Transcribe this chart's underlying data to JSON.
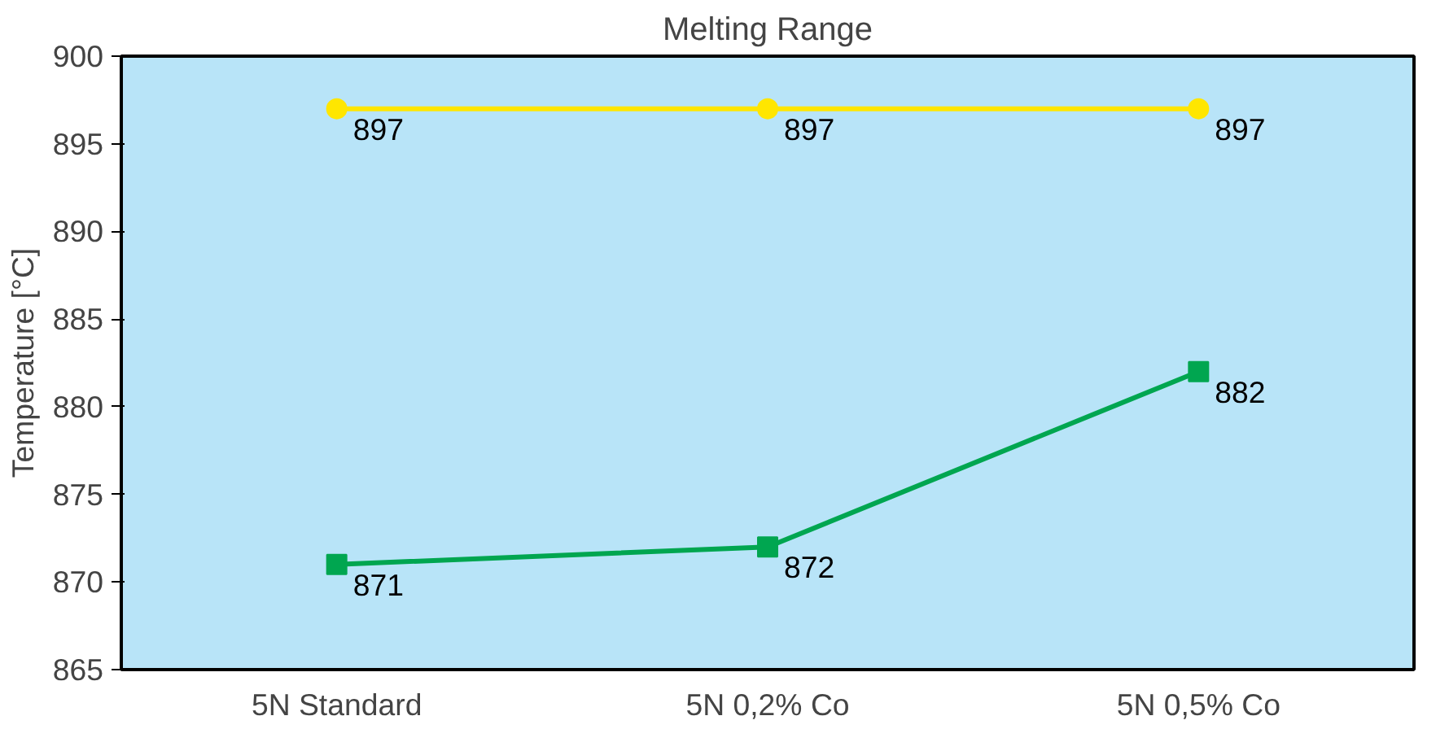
{
  "chart_data": {
    "type": "line",
    "title": "Melting Range",
    "ylabel": "Temperature [°C]",
    "categories": [
      "5N Standard",
      "5N 0,2% Co",
      "5N 0,5% Co"
    ],
    "series": [
      {
        "color": "#ffe600",
        "values": [
          897,
          897,
          897
        ],
        "marker": "circle"
      },
      {
        "color": "#00a650",
        "values": [
          871,
          872,
          882
        ],
        "marker": "square"
      }
    ],
    "ylim": [
      865,
      900
    ],
    "yticks": [
      865,
      870,
      875,
      880,
      885,
      890,
      895,
      900
    ],
    "data_labels": true
  }
}
